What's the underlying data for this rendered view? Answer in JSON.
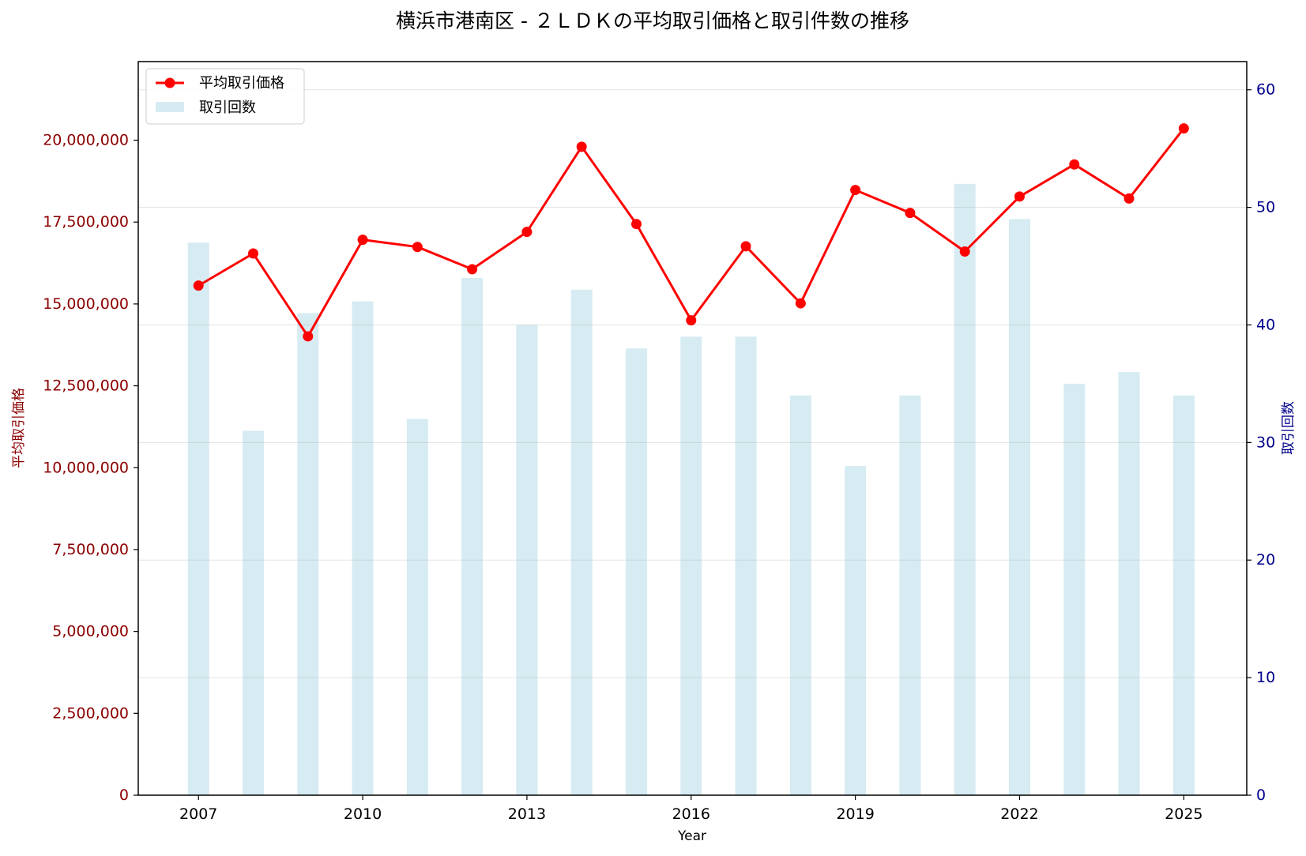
{
  "chart_data": {
    "type": "bar",
    "title": "横浜市港南区 - ２ＬＤＫの平均取引価格と取引件数の推移",
    "xlabel": "Year",
    "ylabel_left": "平均取引価格",
    "ylabel_right": "取引回数",
    "x": [
      2007,
      2008,
      2009,
      2010,
      2011,
      2012,
      2013,
      2014,
      2015,
      2016,
      2017,
      2018,
      2019,
      2020,
      2021,
      2022,
      2023,
      2024,
      2025
    ],
    "x_ticks": [
      "2007",
      "2010",
      "2013",
      "2016",
      "2019",
      "2022",
      "2025"
    ],
    "xlim": [
      2005.9,
      2026.15
    ],
    "ylim_left": [
      0,
      22400000
    ],
    "ylim_right": [
      0,
      62.4
    ],
    "y_ticks_left": [
      "0",
      "2,500,000",
      "5,000,000",
      "7,500,000",
      "10,000,000",
      "12,500,000",
      "15,000,000",
      "17,500,000",
      "20,000,000"
    ],
    "y_ticks_right": [
      "0",
      "10",
      "20",
      "30",
      "40",
      "50",
      "60"
    ],
    "grid": true,
    "legend_position": "top-left",
    "series": [
      {
        "name": "平均取引価格",
        "type": "line",
        "axis": "left",
        "color": "#ff0000",
        "values": [
          15560000,
          16540000,
          14010000,
          16960000,
          16740000,
          16060000,
          17200000,
          19800000,
          17440000,
          14500000,
          16760000,
          15020000,
          18480000,
          17780000,
          16600000,
          18280000,
          19260000,
          18220000,
          20360000
        ]
      },
      {
        "name": "取引回数",
        "type": "bar",
        "axis": "right",
        "color": "#add8e6",
        "values": [
          47,
          31,
          41,
          42,
          32,
          44,
          40,
          43,
          38,
          39,
          39,
          34,
          28,
          34,
          52,
          49,
          35,
          36,
          34
        ]
      }
    ]
  }
}
